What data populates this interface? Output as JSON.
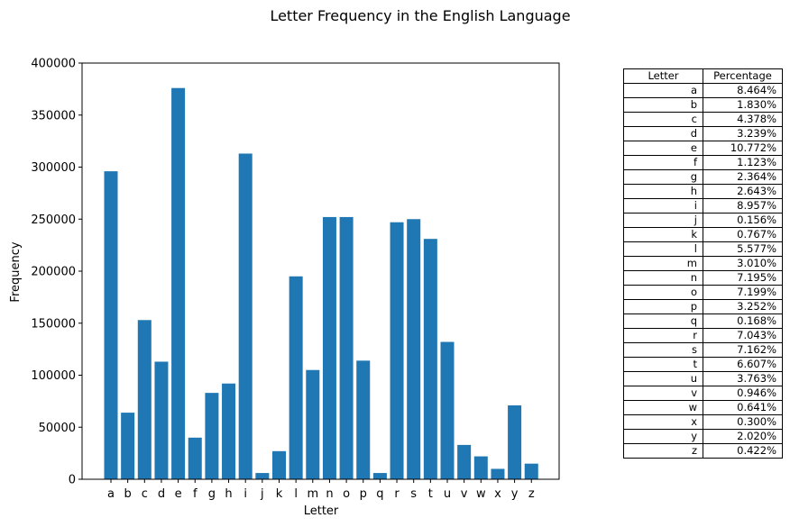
{
  "chart_data": {
    "type": "bar",
    "title": "Letter Frequency in the English Language",
    "xlabel": "Letter",
    "ylabel": "Frequency",
    "ylim": [
      0,
      400000
    ],
    "yticks": [
      "0",
      "50000",
      "100000",
      "150000",
      "200000",
      "250000",
      "300000",
      "350000",
      "400000"
    ],
    "categories": [
      "a",
      "b",
      "c",
      "d",
      "e",
      "f",
      "g",
      "h",
      "i",
      "j",
      "k",
      "l",
      "m",
      "n",
      "o",
      "p",
      "q",
      "r",
      "s",
      "t",
      "u",
      "v",
      "w",
      "x",
      "y",
      "z"
    ],
    "values": [
      296000,
      64000,
      153000,
      113000,
      376000,
      40000,
      83000,
      92000,
      313000,
      6000,
      27000,
      195000,
      105000,
      252000,
      252000,
      114000,
      6000,
      247000,
      250000,
      231000,
      132000,
      33000,
      22000,
      10000,
      71000,
      15000
    ],
    "color": "#1f77b4"
  },
  "table": {
    "headers": [
      "Letter",
      "Percentage"
    ],
    "rows": [
      [
        "a",
        "8.464%"
      ],
      [
        "b",
        "1.830%"
      ],
      [
        "c",
        "4.378%"
      ],
      [
        "d",
        "3.239%"
      ],
      [
        "e",
        "10.772%"
      ],
      [
        "f",
        "1.123%"
      ],
      [
        "g",
        "2.364%"
      ],
      [
        "h",
        "2.643%"
      ],
      [
        "i",
        "8.957%"
      ],
      [
        "j",
        "0.156%"
      ],
      [
        "k",
        "0.767%"
      ],
      [
        "l",
        "5.577%"
      ],
      [
        "m",
        "3.010%"
      ],
      [
        "n",
        "7.195%"
      ],
      [
        "o",
        "7.199%"
      ],
      [
        "p",
        "3.252%"
      ],
      [
        "q",
        "0.168%"
      ],
      [
        "r",
        "7.043%"
      ],
      [
        "s",
        "7.162%"
      ],
      [
        "t",
        "6.607%"
      ],
      [
        "u",
        "3.763%"
      ],
      [
        "v",
        "0.946%"
      ],
      [
        "w",
        "0.641%"
      ],
      [
        "x",
        "0.300%"
      ],
      [
        "y",
        "2.020%"
      ],
      [
        "z",
        "0.422%"
      ]
    ]
  }
}
